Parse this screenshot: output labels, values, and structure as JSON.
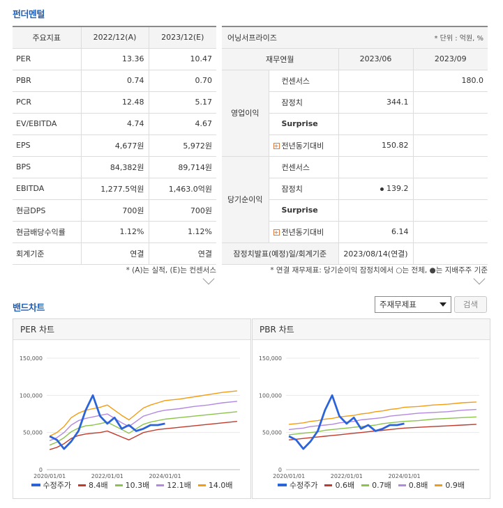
{
  "fundamental": {
    "title": "펀더멘털",
    "left_table": {
      "headers": [
        "주요지표",
        "2022/12(A)",
        "2023/12(E)"
      ],
      "rows": [
        {
          "label": "PER",
          "v1": "13.36",
          "v2": "10.47"
        },
        {
          "label": "PBR",
          "v1": "0.74",
          "v2": "0.70"
        },
        {
          "label": "PCR",
          "v1": "12.48",
          "v2": "5.17"
        },
        {
          "label": "EV/EBITDA",
          "v1": "4.74",
          "v2": "4.67"
        },
        {
          "label": "EPS",
          "v1": "4,677원",
          "v2": "5,972원"
        },
        {
          "label": "BPS",
          "v1": "84,382원",
          "v2": "89,714원"
        },
        {
          "label": "EBITDA",
          "v1": "1,277.5억원",
          "v2": "1,463.0억원"
        },
        {
          "label": "현금DPS",
          "v1": "700원",
          "v2": "700원"
        },
        {
          "label": "현금배당수익률",
          "v1": "1.12%",
          "v2": "1.12%"
        },
        {
          "label": "회계기준",
          "v1": "연결",
          "v2": "연결"
        }
      ],
      "note": "* (A)는 실적, (E)는 컨센서스"
    },
    "right_table": {
      "title": "어닝서프라이즈",
      "unit": "* 단위 : 억원, %",
      "headers": [
        "재무연월",
        "2023/06",
        "2023/09"
      ],
      "groups": [
        {
          "name": "영업이익",
          "rows": [
            {
              "label": "컨센서스",
              "v1": "",
              "v2": "180.0"
            },
            {
              "label": "잠정치",
              "v1": "344.1",
              "v2": ""
            },
            {
              "label": "Surprise",
              "v1": "",
              "v2": ""
            },
            {
              "label": "전년동기대비",
              "v1": "150.82",
              "v2": ""
            }
          ]
        },
        {
          "name": "당기순이익",
          "rows": [
            {
              "label": "컨센서스",
              "v1": "",
              "v2": ""
            },
            {
              "label": "잠정치",
              "v1": "139.2",
              "v2": ""
            },
            {
              "label": "Surprise",
              "v1": "",
              "v2": ""
            },
            {
              "label": "전년동기대비",
              "v1": "6.14",
              "v2": ""
            }
          ]
        }
      ],
      "footer_label": "잠정치발표(예정)일/회계기준",
      "footer_value": "2023/08/14(연결)",
      "note": "* 연결 재무제표: 당기순이익 잠정치에서 ○는 전체, ●는 지배주주 기준"
    }
  },
  "band": {
    "title": "밴드차트",
    "select_value": "주재무제표",
    "search_label": "검색",
    "per_chart": {
      "title": "PER 차트"
    },
    "pbr_chart": {
      "title": "PBR 차트"
    }
  },
  "chart_data": [
    {
      "type": "line",
      "title": "PER 차트",
      "ylim": [
        0,
        150000
      ],
      "yticks": [
        "0",
        "50,000",
        "100,000",
        "150,000"
      ],
      "xticks": [
        "2020/01/01",
        "2022/01/01",
        "2024/01/01"
      ],
      "x": [
        2020.0,
        2020.25,
        2020.5,
        2020.75,
        2021.0,
        2021.25,
        2021.5,
        2021.75,
        2022.0,
        2022.25,
        2022.5,
        2022.75,
        2023.0,
        2023.25,
        2023.5,
        2023.75,
        2024.0,
        2024.5,
        2025.0,
        2025.5,
        2026.0,
        2026.5
      ],
      "series": [
        {
          "name": "수정주가",
          "color": "#2b63d9",
          "values": [
            45000,
            40000,
            28000,
            38000,
            52000,
            80000,
            100000,
            72000,
            62000,
            70000,
            55000,
            60000,
            52000,
            55000,
            60000,
            60000,
            62000,
            null,
            null,
            null,
            null,
            null
          ]
        },
        {
          "name": "8.4배",
          "color": "#c0392b",
          "values": [
            27000,
            30000,
            35000,
            42000,
            46000,
            48000,
            49000,
            50000,
            52000,
            48000,
            44000,
            40000,
            45000,
            50000,
            52000,
            54000,
            55000,
            57000,
            59000,
            61000,
            63000,
            65000
          ]
        },
        {
          "name": "10.3배",
          "color": "#8bc34a",
          "values": [
            33000,
            37000,
            43000,
            51000,
            56000,
            59000,
            60000,
            62000,
            64000,
            59000,
            54000,
            49000,
            55000,
            61000,
            64000,
            66000,
            68000,
            70000,
            72000,
            74000,
            76000,
            78000
          ]
        },
        {
          "name": "12.1배",
          "color": "#b388e0",
          "values": [
            39000,
            43000,
            50000,
            60000,
            66000,
            69000,
            71000,
            73000,
            75000,
            69000,
            63000,
            58000,
            65000,
            72000,
            75000,
            78000,
            80000,
            82000,
            85000,
            87000,
            90000,
            92000
          ]
        },
        {
          "name": "14.0배",
          "color": "#f39c12",
          "values": [
            45000,
            50000,
            58000,
            70000,
            76000,
            80000,
            82000,
            84000,
            87000,
            80000,
            73000,
            67000,
            75000,
            83000,
            87000,
            90000,
            93000,
            95000,
            98000,
            101000,
            104000,
            106000
          ]
        }
      ]
    },
    {
      "type": "line",
      "title": "PBR 차트",
      "ylim": [
        0,
        150000
      ],
      "yticks": [
        "0",
        "50,000",
        "100,000",
        "150,000"
      ],
      "xticks": [
        "2020/01/01",
        "2022/01/01",
        "2024/01/01"
      ],
      "x": [
        2020.0,
        2020.25,
        2020.5,
        2020.75,
        2021.0,
        2021.25,
        2021.5,
        2021.75,
        2022.0,
        2022.25,
        2022.5,
        2022.75,
        2023.0,
        2023.25,
        2023.5,
        2023.75,
        2024.0,
        2024.5,
        2025.0,
        2025.5,
        2026.0,
        2026.5
      ],
      "series": [
        {
          "name": "수정주가",
          "color": "#2b63d9",
          "values": [
            45000,
            40000,
            28000,
            38000,
            52000,
            80000,
            100000,
            72000,
            62000,
            70000,
            55000,
            60000,
            52000,
            55000,
            60000,
            60000,
            62000,
            null,
            null,
            null,
            null,
            null
          ]
        },
        {
          "name": "0.6배",
          "color": "#c0392b",
          "values": [
            40000,
            41000,
            42000,
            43000,
            44000,
            45000,
            46000,
            47000,
            48000,
            49000,
            50000,
            51000,
            52000,
            53000,
            54000,
            55000,
            56000,
            57000,
            58000,
            59000,
            60000,
            61000
          ]
        },
        {
          "name": "0.7배",
          "color": "#8bc34a",
          "values": [
            47000,
            48000,
            49000,
            50000,
            51000,
            53000,
            54000,
            55000,
            56000,
            57000,
            58000,
            59000,
            60000,
            62000,
            63000,
            64000,
            65000,
            66000,
            68000,
            69000,
            70000,
            71000
          ]
        },
        {
          "name": "0.8배",
          "color": "#b388e0",
          "values": [
            54000,
            55000,
            56000,
            58000,
            59000,
            60000,
            61000,
            63000,
            64000,
            65000,
            67000,
            68000,
            69000,
            70000,
            72000,
            73000,
            74000,
            76000,
            77000,
            78000,
            80000,
            81000
          ]
        },
        {
          "name": "0.9배",
          "color": "#f39c12",
          "values": [
            61000,
            62000,
            63000,
            65000,
            66000,
            68000,
            69000,
            71000,
            72000,
            73000,
            75000,
            76000,
            78000,
            79000,
            81000,
            82000,
            84000,
            85000,
            87000,
            88000,
            90000,
            91000
          ]
        }
      ]
    }
  ]
}
